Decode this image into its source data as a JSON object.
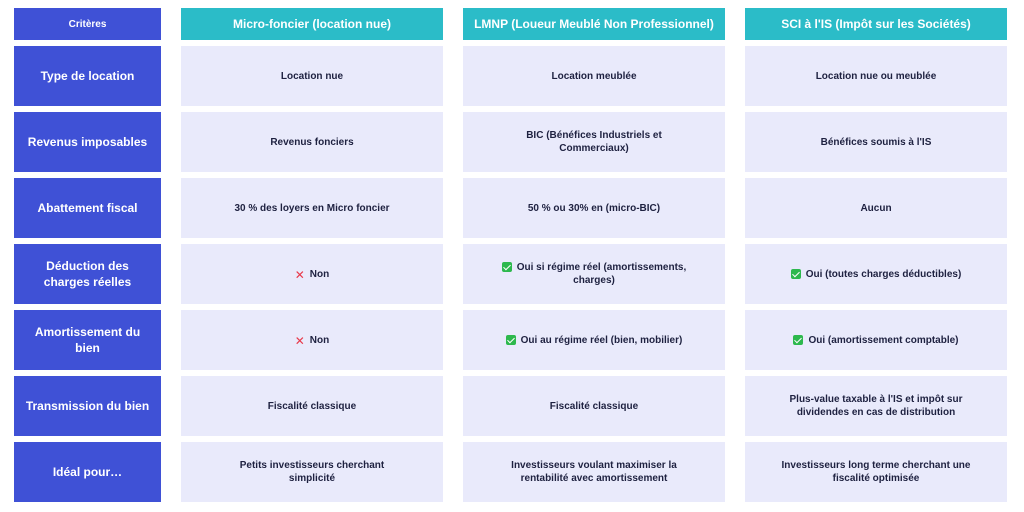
{
  "header": {
    "criteria_label": "Critères",
    "columns": [
      "Micro-foncier (location nue)",
      "LMNP (Loueur Meublé Non Professionnel)",
      "SCI à l'IS (Impôt sur les Sociétés)"
    ]
  },
  "rows": [
    {
      "label": "Type de location",
      "cells": [
        {
          "text": "Location nue",
          "icon": "none"
        },
        {
          "text": "Location meublée",
          "icon": "none"
        },
        {
          "text": "Location nue ou meublée",
          "icon": "none"
        }
      ]
    },
    {
      "label": "Revenus imposables",
      "cells": [
        {
          "text": "Revenus fonciers",
          "icon": "none"
        },
        {
          "text": "BIC (Bénéfices Industriels et Commerciaux)",
          "icon": "none"
        },
        {
          "text": "Bénéfices soumis à l'IS",
          "icon": "none"
        }
      ]
    },
    {
      "label": "Abattement fiscal",
      "cells": [
        {
          "text": "30 % des loyers en Micro foncier",
          "icon": "none"
        },
        {
          "text": "50 % ou 30% en (micro-BIC)",
          "icon": "none"
        },
        {
          "text": "Aucun",
          "icon": "none"
        }
      ]
    },
    {
      "label": "Déduction des charges réelles",
      "cells": [
        {
          "text": "Non",
          "icon": "cross"
        },
        {
          "text": "Oui si régime réel (amortissements, charges)",
          "icon": "check"
        },
        {
          "text": "Oui (toutes charges déductibles)",
          "icon": "check"
        }
      ]
    },
    {
      "label": "Amortissement du bien",
      "cells": [
        {
          "text": "Non",
          "icon": "cross"
        },
        {
          "text": "Oui au régime réel (bien, mobilier)",
          "icon": "check"
        },
        {
          "text": "Oui (amortissement comptable)",
          "icon": "check"
        }
      ]
    },
    {
      "label": "Transmission du bien",
      "cells": [
        {
          "text": "Fiscalité classique",
          "icon": "none"
        },
        {
          "text": "Fiscalité classique",
          "icon": "none"
        },
        {
          "text": "Plus-value taxable à l'IS et impôt sur dividendes en cas de distribution",
          "icon": "none"
        }
      ]
    },
    {
      "label": "Idéal pour…",
      "cells": [
        {
          "text": "Petits investisseurs cherchant simplicité",
          "icon": "none"
        },
        {
          "text": "Investisseurs voulant maximiser la rentabilité avec amortissement",
          "icon": "none"
        },
        {
          "text": "Investisseurs long terme cherchant une fiscalité optimisée",
          "icon": "none"
        }
      ]
    }
  ],
  "colors": {
    "row_header_bg": "#3f51d6",
    "column_header_bg": "#2bbcc8",
    "cell_bg": "#e9eafb",
    "check_green": "#2db84d",
    "cross_red": "#e8394a"
  }
}
